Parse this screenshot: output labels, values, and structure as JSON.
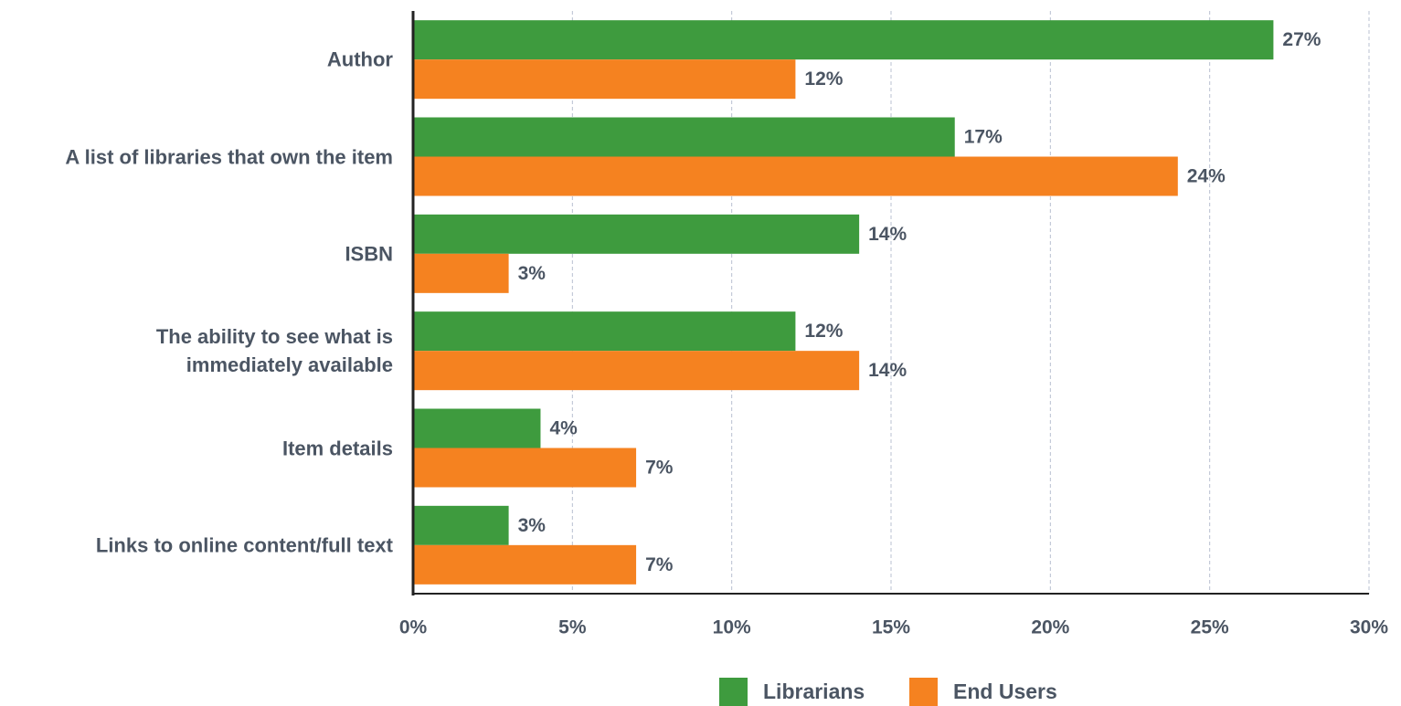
{
  "chart_data": {
    "type": "bar",
    "orientation": "horizontal",
    "categories": [
      "Author",
      "A list of libraries that own the item",
      "ISBN",
      "The ability to see what is\nimmediately available",
      "Item details",
      "Links to online content/full text"
    ],
    "series": [
      {
        "name": "Librarians",
        "color": "#3e9b3e",
        "values": [
          27,
          17,
          14,
          12,
          4,
          3
        ],
        "value_labels": [
          "27%",
          "17%",
          "14%",
          "12%",
          "4%",
          "3%"
        ]
      },
      {
        "name": "End Users",
        "color": "#f58220",
        "values": [
          12,
          24,
          3,
          14,
          7,
          7
        ],
        "value_labels": [
          "12%",
          "24%",
          "3%",
          "14%",
          "7%",
          "7%"
        ]
      }
    ],
    "xlim": [
      0,
      30
    ],
    "xticks": [
      {
        "value": 0,
        "label": "0%"
      },
      {
        "value": 5,
        "label": "5%"
      },
      {
        "value": 10,
        "label": "10%"
      },
      {
        "value": 15,
        "label": "15%"
      },
      {
        "value": 20,
        "label": "20%"
      },
      {
        "value": 25,
        "label": "25%"
      },
      {
        "value": 30,
        "label": "30%"
      }
    ],
    "grid": true,
    "legend": "bottom"
  }
}
